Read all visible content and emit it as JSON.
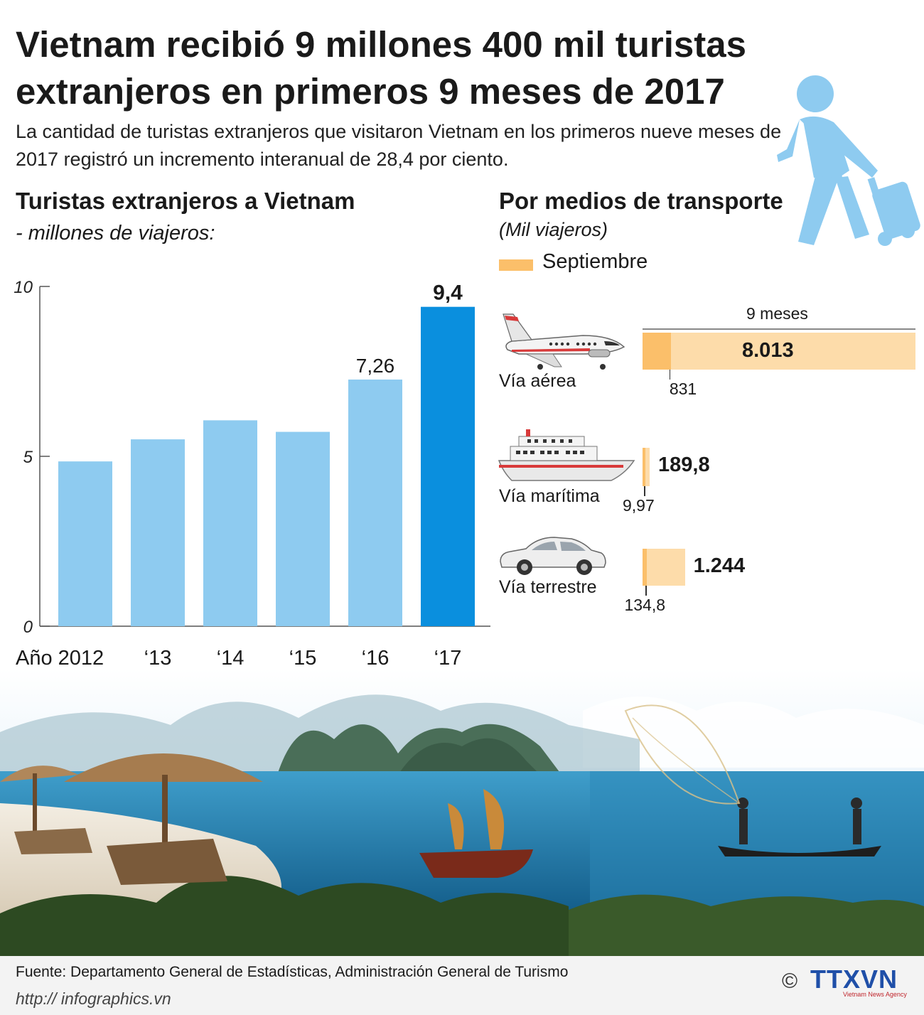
{
  "title": "Vietnam recibió 9 millones 400 mil turistas extranjeros en primeros 9 meses de 2017",
  "subtitle": "La cantidad de turistas extranjeros que visitaron Vietnam en los primeros nueve meses de 2017 registró un incremento interanual de 28,4 por ciento.",
  "left_section": {
    "title": "Turistas extranjeros a Vietnam",
    "subtitle": "- millones de viajeros:"
  },
  "right_section": {
    "title": "Por medios de transporte",
    "subtitle": "(Mil viajeros)",
    "legend_label": "Septiembre",
    "total_label": "9 meses"
  },
  "chart_data": [
    {
      "type": "bar",
      "title": "Turistas extranjeros a Vietnam",
      "ylabel": "- millones de viajeros:",
      "categories": [
        "Año 2012",
        "‘13",
        "‘14",
        "‘15",
        "‘16",
        "‘17"
      ],
      "values": [
        4.85,
        5.5,
        6.06,
        5.72,
        7.26,
        9.4
      ],
      "data_labels": [
        "",
        "",
        "",
        "",
        "7,26",
        "9,4"
      ],
      "highlight_index": 5,
      "ylim": [
        0,
        10
      ],
      "yticks": [
        0,
        5,
        10
      ],
      "ytick_labels": [
        "0",
        "5",
        "10"
      ],
      "colors": {
        "bar": "#8ecbf0",
        "highlight": "#0a8fde"
      }
    },
    {
      "type": "bar",
      "title": "Por medios de transporte",
      "subtitle": "(Mil viajeros)",
      "orientation": "horizontal",
      "categories": [
        "Vía aérea",
        "Vía marítima",
        "Vía terrestre"
      ],
      "icons": [
        "airplane-icon",
        "ship-icon",
        "car-icon"
      ],
      "series": [
        {
          "name": "Septiembre",
          "values": [
            831,
            9.97,
            134.8
          ],
          "labels": [
            "831",
            "9,97",
            "134,8"
          ],
          "color": "#fbbf6a"
        },
        {
          "name": "9 meses",
          "values": [
            8013,
            189.8,
            1244
          ],
          "labels": [
            "8.013",
            "189,8",
            "1.244"
          ],
          "color": "#fddcaa"
        }
      ]
    }
  ],
  "footer": {
    "source": "Fuente: Departamento General de Estadísticas, Administración General de Turismo",
    "url": "http:// infographics.vn",
    "copyright": "©",
    "logo_text": "TTXVN",
    "logo_sub": "Vietnam News Agency"
  },
  "colors": {
    "accent_blue": "#0a8fde",
    "light_blue": "#8ecbf0",
    "orange": "#fbbf6a",
    "light_orange": "#fddcaa",
    "traveler": "#8ecbf0"
  }
}
